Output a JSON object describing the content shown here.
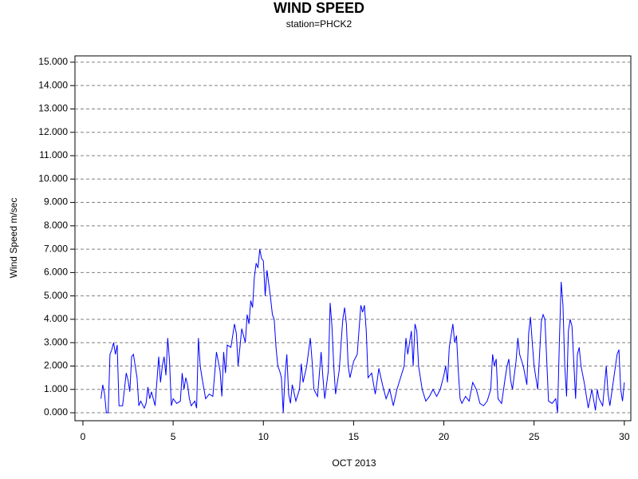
{
  "chart_data": {
    "type": "line",
    "title": "WIND SPEED",
    "subtitle": "station=PHCK2",
    "x_label": "OCT 2013",
    "y_label": "Wind Speed m/sec",
    "grid": true,
    "series": [
      {
        "name": "Wind Speed",
        "color": "#0000ff",
        "x": [
          1.0,
          1.1,
          1.2,
          1.3,
          1.4,
          1.5,
          1.6,
          1.7,
          1.8,
          1.9,
          2.0,
          2.2,
          2.4,
          2.5,
          2.6,
          2.7,
          2.8,
          2.9,
          3.0,
          3.1,
          3.2,
          3.4,
          3.5,
          3.6,
          3.7,
          3.8,
          3.9,
          4.0,
          4.2,
          4.3,
          4.4,
          4.5,
          4.6,
          4.7,
          4.8,
          4.9,
          5.0,
          5.2,
          5.4,
          5.5,
          5.6,
          5.7,
          5.8,
          5.9,
          6.0,
          6.2,
          6.3,
          6.4,
          6.5,
          6.6,
          6.8,
          7.0,
          7.2,
          7.4,
          7.6,
          7.7,
          7.8,
          7.9,
          8.0,
          8.2,
          8.4,
          8.5,
          8.6,
          8.8,
          9.0,
          9.1,
          9.2,
          9.3,
          9.4,
          9.5,
          9.6,
          9.7,
          9.8,
          9.9,
          10.0,
          10.1,
          10.2,
          10.3,
          10.4,
          10.5,
          10.6,
          10.7,
          10.8,
          10.9,
          11.0,
          11.1,
          11.2,
          11.3,
          11.4,
          11.5,
          11.6,
          11.8,
          12.0,
          12.1,
          12.2,
          12.4,
          12.6,
          12.7,
          12.8,
          13.0,
          13.2,
          13.3,
          13.4,
          13.6,
          13.7,
          13.8,
          13.9,
          14.0,
          14.2,
          14.4,
          14.5,
          14.6,
          14.7,
          14.8,
          15.0,
          15.2,
          15.4,
          15.5,
          15.6,
          15.7,
          15.8,
          16.0,
          16.2,
          16.4,
          16.6,
          16.8,
          17.0,
          17.2,
          17.4,
          17.6,
          17.8,
          17.9,
          18.0,
          18.2,
          18.3,
          18.4,
          18.5,
          18.6,
          18.8,
          19.0,
          19.2,
          19.4,
          19.6,
          19.8,
          20.0,
          20.1,
          20.2,
          20.3,
          20.4,
          20.5,
          20.6,
          20.7,
          20.8,
          20.9,
          21.0,
          21.2,
          21.4,
          21.6,
          21.8,
          22.0,
          22.2,
          22.4,
          22.6,
          22.7,
          22.8,
          22.9,
          23.0,
          23.2,
          23.4,
          23.5,
          23.6,
          23.7,
          23.8,
          24.0,
          24.1,
          24.2,
          24.4,
          24.6,
          24.7,
          24.8,
          24.9,
          25.0,
          25.2,
          25.4,
          25.5,
          25.6,
          25.8,
          26.0,
          26.2,
          26.3,
          26.4,
          26.5,
          26.6,
          26.7,
          26.8,
          26.9,
          27.0,
          27.1,
          27.3,
          27.4,
          27.5,
          27.6,
          27.8,
          28.0,
          28.2,
          28.4,
          28.5,
          28.6,
          28.8,
          29.0,
          29.1,
          29.2,
          29.4,
          29.6,
          29.7,
          29.8,
          29.9,
          30.0
        ],
        "values": [
          0.6,
          1.2,
          0.8,
          0.0,
          0.0,
          2.5,
          2.7,
          3.0,
          2.5,
          2.9,
          0.3,
          0.3,
          1.7,
          1.4,
          0.9,
          2.4,
          2.5,
          2.0,
          1.5,
          0.3,
          0.5,
          0.2,
          0.4,
          1.1,
          0.6,
          0.9,
          0.6,
          0.3,
          2.4,
          1.3,
          2.0,
          2.4,
          1.6,
          3.2,
          2.2,
          0.3,
          0.6,
          0.4,
          0.5,
          1.7,
          1.0,
          1.5,
          1.2,
          0.6,
          0.3,
          0.5,
          0.2,
          3.2,
          2.0,
          1.5,
          0.6,
          0.8,
          0.7,
          2.6,
          1.8,
          0.7,
          2.6,
          1.7,
          2.9,
          2.8,
          3.8,
          3.4,
          2.0,
          3.6,
          3.0,
          4.2,
          3.8,
          4.8,
          4.5,
          5.8,
          6.4,
          6.2,
          7.0,
          6.6,
          6.5,
          5.0,
          6.1,
          5.5,
          4.9,
          4.2,
          4.0,
          2.8,
          2.0,
          1.8,
          1.5,
          0.0,
          1.6,
          2.5,
          0.8,
          0.4,
          1.2,
          0.5,
          1.0,
          2.1,
          1.3,
          2.0,
          3.2,
          2.2,
          1.0,
          0.7,
          2.6,
          1.5,
          0.6,
          1.8,
          4.7,
          3.7,
          2.0,
          0.8,
          1.8,
          4.0,
          4.5,
          3.8,
          2.0,
          1.5,
          2.2,
          2.5,
          4.6,
          4.3,
          4.6,
          3.5,
          1.5,
          1.7,
          0.8,
          1.9,
          1.2,
          0.6,
          1.0,
          0.3,
          1.0,
          1.5,
          2.0,
          3.2,
          2.5,
          3.5,
          2.0,
          3.8,
          3.5,
          2.0,
          1.0,
          0.5,
          0.7,
          1.0,
          0.7,
          1.0,
          1.6,
          2.0,
          1.3,
          2.8,
          3.3,
          3.8,
          3.0,
          3.3,
          1.8,
          0.6,
          0.4,
          0.7,
          0.5,
          1.3,
          1.0,
          0.4,
          0.3,
          0.5,
          1.0,
          2.5,
          2.0,
          2.3,
          0.6,
          0.4,
          1.5,
          2.0,
          2.3,
          1.4,
          1.0,
          2.2,
          3.2,
          2.5,
          2.0,
          1.2,
          3.4,
          4.1,
          3.0,
          2.0,
          1.0,
          3.9,
          4.2,
          4.0,
          0.5,
          0.4,
          0.6,
          0.0,
          3.0,
          5.6,
          4.6,
          2.0,
          0.7,
          3.5,
          4.0,
          3.7,
          0.6,
          2.5,
          2.8,
          2.0,
          1.2,
          0.2,
          1.0,
          0.1,
          1.0,
          0.6,
          0.3,
          2.0,
          0.8,
          0.3,
          1.4,
          2.5,
          2.7,
          1.0,
          0.5,
          1.3
        ]
      }
    ],
    "xlim": [
      -0.44,
      30.36
    ],
    "xticks": [
      0,
      5,
      10,
      15,
      20,
      25,
      30
    ],
    "ylim": [
      -0.34,
      15.27
    ],
    "yticks": [
      {
        "value": 0,
        "label": "0.000"
      },
      {
        "value": 1,
        "label": "1.000"
      },
      {
        "value": 2,
        "label": "2.000"
      },
      {
        "value": 3,
        "label": "3.000"
      },
      {
        "value": 4,
        "label": "4.000"
      },
      {
        "value": 5,
        "label": "5.000"
      },
      {
        "value": 6,
        "label": "6.000"
      },
      {
        "value": 7,
        "label": "7.000"
      },
      {
        "value": 8,
        "label": "8.000"
      },
      {
        "value": 9,
        "label": "9.000"
      },
      {
        "value": 10,
        "label": "10.000"
      },
      {
        "value": 11,
        "label": "11.000"
      },
      {
        "value": 12,
        "label": "12.000"
      },
      {
        "value": 13,
        "label": "13.000"
      },
      {
        "value": 14,
        "label": "14.000"
      },
      {
        "value": 15,
        "label": "15.000"
      }
    ]
  }
}
